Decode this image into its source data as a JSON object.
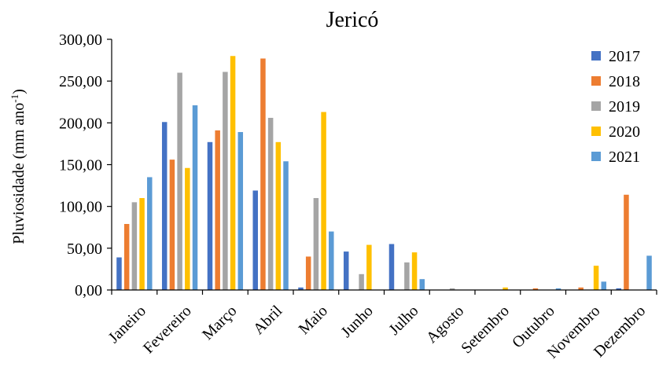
{
  "chart_data": {
    "type": "bar",
    "title": "Jericó",
    "ylabel": "Pluviosidade (mm ano",
    "ylabel_superscript": "-1",
    "ylabel_suffix": ")",
    "xlabel": "",
    "ylim": [
      0,
      300
    ],
    "yticks": [
      "0,00",
      "50,00",
      "100,00",
      "150,00",
      "200,00",
      "250,00",
      "300,00"
    ],
    "grid": false,
    "legend_position": "right",
    "categories": [
      "Janeiro",
      "Fevereiro",
      "Março",
      "Abril",
      "Maio",
      "Junho",
      "Julho",
      "Agosto",
      "Setembro",
      "Outubro",
      "Novembro",
      "Dezembro"
    ],
    "series": [
      {
        "name": "2017",
        "color": "#4472C4",
        "values": [
          39,
          201,
          177,
          119,
          3,
          46,
          55,
          0,
          0,
          0,
          0,
          2
        ]
      },
      {
        "name": "2018",
        "color": "#ED7D31",
        "values": [
          79,
          156,
          191,
          277,
          40,
          0,
          0,
          0,
          0,
          2,
          3,
          114
        ]
      },
      {
        "name": "2019",
        "color": "#A5A5A5",
        "values": [
          105,
          260,
          261,
          206,
          110,
          19,
          33,
          2,
          0,
          0,
          0,
          0
        ]
      },
      {
        "name": "2020",
        "color": "#FFC000",
        "values": [
          110,
          146,
          280,
          177,
          213,
          54,
          45,
          0,
          3,
          0,
          29,
          0
        ]
      },
      {
        "name": "2021",
        "color": "#5B9BD5",
        "values": [
          135,
          221,
          189,
          154,
          70,
          0,
          13,
          0,
          0,
          2,
          10,
          41
        ]
      }
    ]
  }
}
